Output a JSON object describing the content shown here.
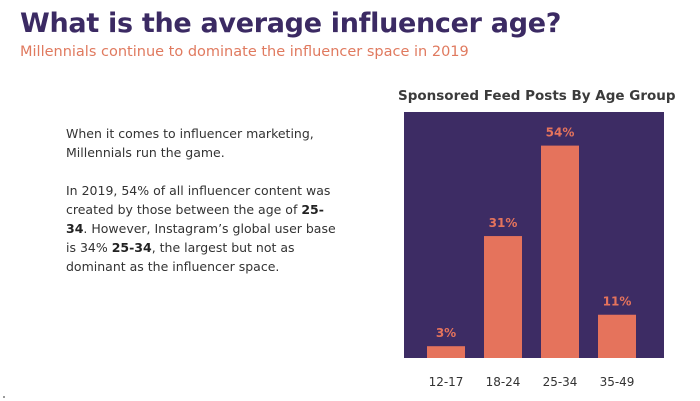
{
  "header": {
    "title": "What is the average influencer age?",
    "subtitle": "Millennials continue to dominate the influencer space in 2019"
  },
  "body": {
    "paragraph1": "When it comes to influencer marketing, Millennials run the game.",
    "p2_part1": "In 2019, 54% of all influencer content was created by those between the age of ",
    "p2_bold1": "25-34",
    "p2_part2": ". However, Instagram’s global user base is 34% ",
    "p2_bold2": "25-34",
    "p2_part3": ", the largest but not as dominant as the influencer space."
  },
  "colors": {
    "title": "#3b2a63",
    "subtitle": "#e07a5f",
    "chart_background": "#3d2c64",
    "bar": "#e5735c",
    "value_label": "#e5735c",
    "tick_label": "#333333"
  },
  "chart_data": {
    "type": "bar",
    "title": "Sponsored Feed Posts By Age Group",
    "categories": [
      "12-17",
      "18-24",
      "25-34",
      "35-49"
    ],
    "values": [
      3,
      31,
      54,
      11
    ],
    "value_labels": [
      "3%",
      "31%",
      "54%",
      "11%"
    ],
    "xlabel": "",
    "ylabel": "",
    "ylim": [
      0,
      60
    ],
    "grid": false,
    "legend": "none"
  }
}
